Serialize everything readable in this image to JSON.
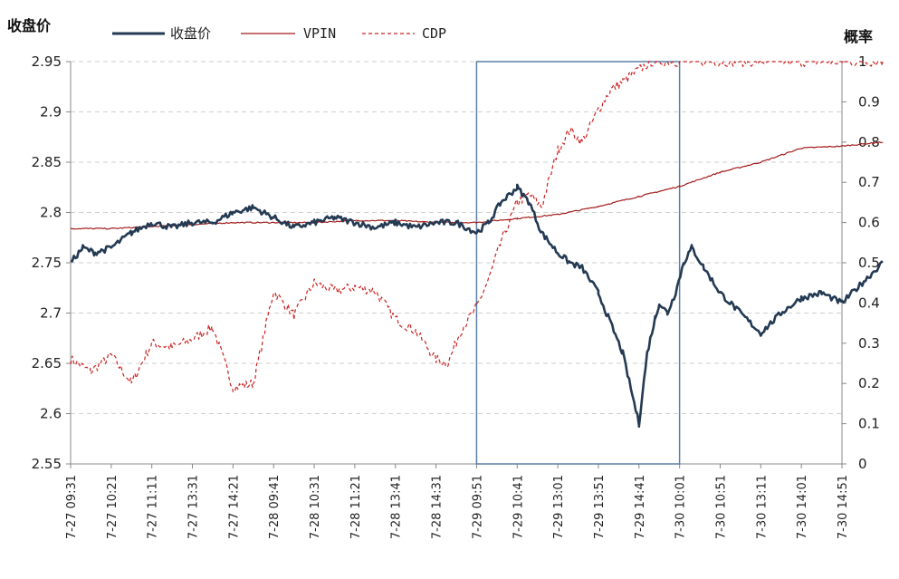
{
  "chart_data": {
    "type": "line",
    "left_axis_title": "收盘价",
    "right_axis_title": "概率",
    "y_left": {
      "min": 2.55,
      "max": 2.95,
      "ticks": [
        "2.55",
        "2.6",
        "2.65",
        "2.7",
        "2.75",
        "2.8",
        "2.85",
        "2.9",
        "2.95"
      ]
    },
    "y_right": {
      "min": 0,
      "max": 1,
      "ticks": [
        "0",
        "0.1",
        "0.2",
        "0.3",
        "0.4",
        "0.5",
        "0.6",
        "0.7",
        "0.8",
        "0.9",
        "1"
      ]
    },
    "grid": "horizontal-dashed",
    "legend_position": "top",
    "x_ticks": [
      "7-27 09:31",
      "7-27 10:21",
      "7-27 11:11",
      "7-27 13:31",
      "7-27 14:21",
      "7-28 09:41",
      "7-28 10:31",
      "7-28 11:21",
      "7-28 13:41",
      "7-28 14:31",
      "7-29 09:51",
      "7-29 10:41",
      "7-29 13:01",
      "7-29 13:51",
      "7-29 14:41",
      "7-30 10:01",
      "7-30 10:51",
      "7-30 13:11",
      "7-30 14:01",
      "7-30 14:51"
    ],
    "highlight_range": {
      "from_index": 10,
      "to_index": 15
    },
    "series": [
      {
        "name": "收盘价",
        "axis": "left",
        "style": "solid-thick",
        "color": "#243a53",
        "x": [
          0,
          0.3,
          0.6,
          1,
          1.5,
          2,
          2.5,
          3,
          3.5,
          4,
          4.5,
          5,
          5.5,
          6,
          6.5,
          7,
          7.5,
          8,
          8.5,
          9,
          9.5,
          10,
          10.3,
          10.6,
          11,
          11.3,
          11.6,
          12,
          12.3,
          12.6,
          13,
          13.3,
          13.6,
          14,
          14.2,
          14.4,
          14.5,
          14.7,
          14.9,
          15.1,
          15.3,
          15.6,
          16,
          16.5,
          17,
          17.5,
          18,
          18.5,
          19,
          19.5,
          20
        ],
        "y": [
          2.75,
          2.765,
          2.76,
          2.765,
          2.78,
          2.79,
          2.785,
          2.79,
          2.79,
          2.8,
          2.805,
          2.795,
          2.785,
          2.79,
          2.795,
          2.79,
          2.785,
          2.79,
          2.785,
          2.79,
          2.79,
          2.78,
          2.79,
          2.81,
          2.825,
          2.81,
          2.78,
          2.76,
          2.75,
          2.745,
          2.72,
          2.69,
          2.66,
          2.59,
          2.66,
          2.695,
          2.71,
          2.7,
          2.72,
          2.75,
          2.765,
          2.745,
          2.72,
          2.7,
          2.68,
          2.7,
          2.715,
          2.72,
          2.71,
          2.73,
          2.75
        ]
      },
      {
        "name": "VPIN",
        "axis": "right",
        "style": "solid-thin",
        "color": "#a31c1c",
        "x": [
          0,
          1,
          2,
          3,
          4,
          5,
          6,
          7,
          8,
          9,
          10,
          11,
          12,
          13,
          14,
          15,
          16,
          17,
          18,
          19,
          20
        ],
        "y": [
          0.585,
          0.585,
          0.59,
          0.595,
          0.6,
          0.6,
          0.6,
          0.605,
          0.605,
          0.6,
          0.6,
          0.61,
          0.62,
          0.64,
          0.665,
          0.69,
          0.725,
          0.75,
          0.785,
          0.79,
          0.8
        ]
      },
      {
        "name": "CDP",
        "axis": "right",
        "style": "dashed",
        "color": "#cc2222",
        "x": [
          0,
          0.5,
          1,
          1.5,
          2,
          2.5,
          3,
          3.5,
          4,
          4.5,
          5,
          5.5,
          6,
          6.5,
          7,
          7.5,
          8,
          8.5,
          9,
          9.3,
          9.6,
          10,
          10.3,
          10.6,
          11,
          11.3,
          11.6,
          12,
          12.3,
          12.6,
          13,
          13.3,
          13.6,
          14,
          14.3,
          15,
          16,
          17,
          18,
          19,
          20
        ],
        "y": [
          0.26,
          0.23,
          0.27,
          0.2,
          0.3,
          0.29,
          0.31,
          0.34,
          0.19,
          0.2,
          0.43,
          0.37,
          0.45,
          0.43,
          0.44,
          0.43,
          0.36,
          0.33,
          0.26,
          0.25,
          0.33,
          0.39,
          0.46,
          0.55,
          0.65,
          0.67,
          0.64,
          0.78,
          0.83,
          0.8,
          0.88,
          0.93,
          0.95,
          0.98,
          1,
          1,
          1,
          1,
          1,
          1,
          1
        ]
      }
    ]
  },
  "colors": {
    "highlight_box": "#5b7fa6",
    "grid": "#cfcfcf",
    "axis": "#888888"
  }
}
